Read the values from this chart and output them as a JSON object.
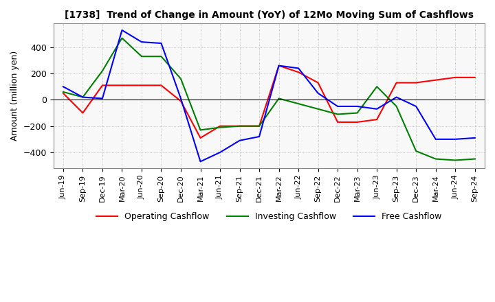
{
  "title": "[1738]  Trend of Change in Amount (YoY) of 12Mo Moving Sum of Cashflows",
  "ylabel": "Amount (million yen)",
  "x_labels": [
    "Jun-19",
    "Sep-19",
    "Dec-19",
    "Mar-20",
    "Jun-20",
    "Sep-20",
    "Dec-20",
    "Mar-21",
    "Jun-21",
    "Sep-21",
    "Dec-21",
    "Mar-22",
    "Jun-22",
    "Sep-22",
    "Dec-22",
    "Mar-23",
    "Jun-23",
    "Sep-23",
    "Dec-23",
    "Mar-24",
    "Jun-24",
    "Sep-24"
  ],
  "operating": [
    50,
    -100,
    110,
    110,
    110,
    110,
    -10,
    -290,
    -200,
    -200,
    -200,
    260,
    210,
    130,
    -170,
    -170,
    -150,
    130,
    130,
    150,
    170,
    170
  ],
  "investing": [
    60,
    20,
    220,
    470,
    330,
    330,
    160,
    -230,
    -210,
    -200,
    -200,
    10,
    -30,
    -70,
    -110,
    -100,
    100,
    -50,
    -390,
    -450,
    -460,
    -450
  ],
  "free": [
    100,
    20,
    10,
    530,
    440,
    430,
    10,
    -470,
    -400,
    -310,
    -280,
    260,
    240,
    50,
    -50,
    -50,
    -70,
    20,
    -50,
    -300,
    -300,
    -290
  ],
  "ylim": [
    -520,
    580
  ],
  "yticks": [
    -400,
    -200,
    0,
    200,
    400
  ],
  "colors": {
    "operating": "#ff0000",
    "investing": "#008000",
    "free": "#0000ff"
  },
  "legend_labels": [
    "Operating Cashflow",
    "Investing Cashflow",
    "Free Cashflow"
  ],
  "grid_color": "#aaaaaa",
  "bg_plot": "#f8f8f8",
  "background_color": "#ffffff"
}
